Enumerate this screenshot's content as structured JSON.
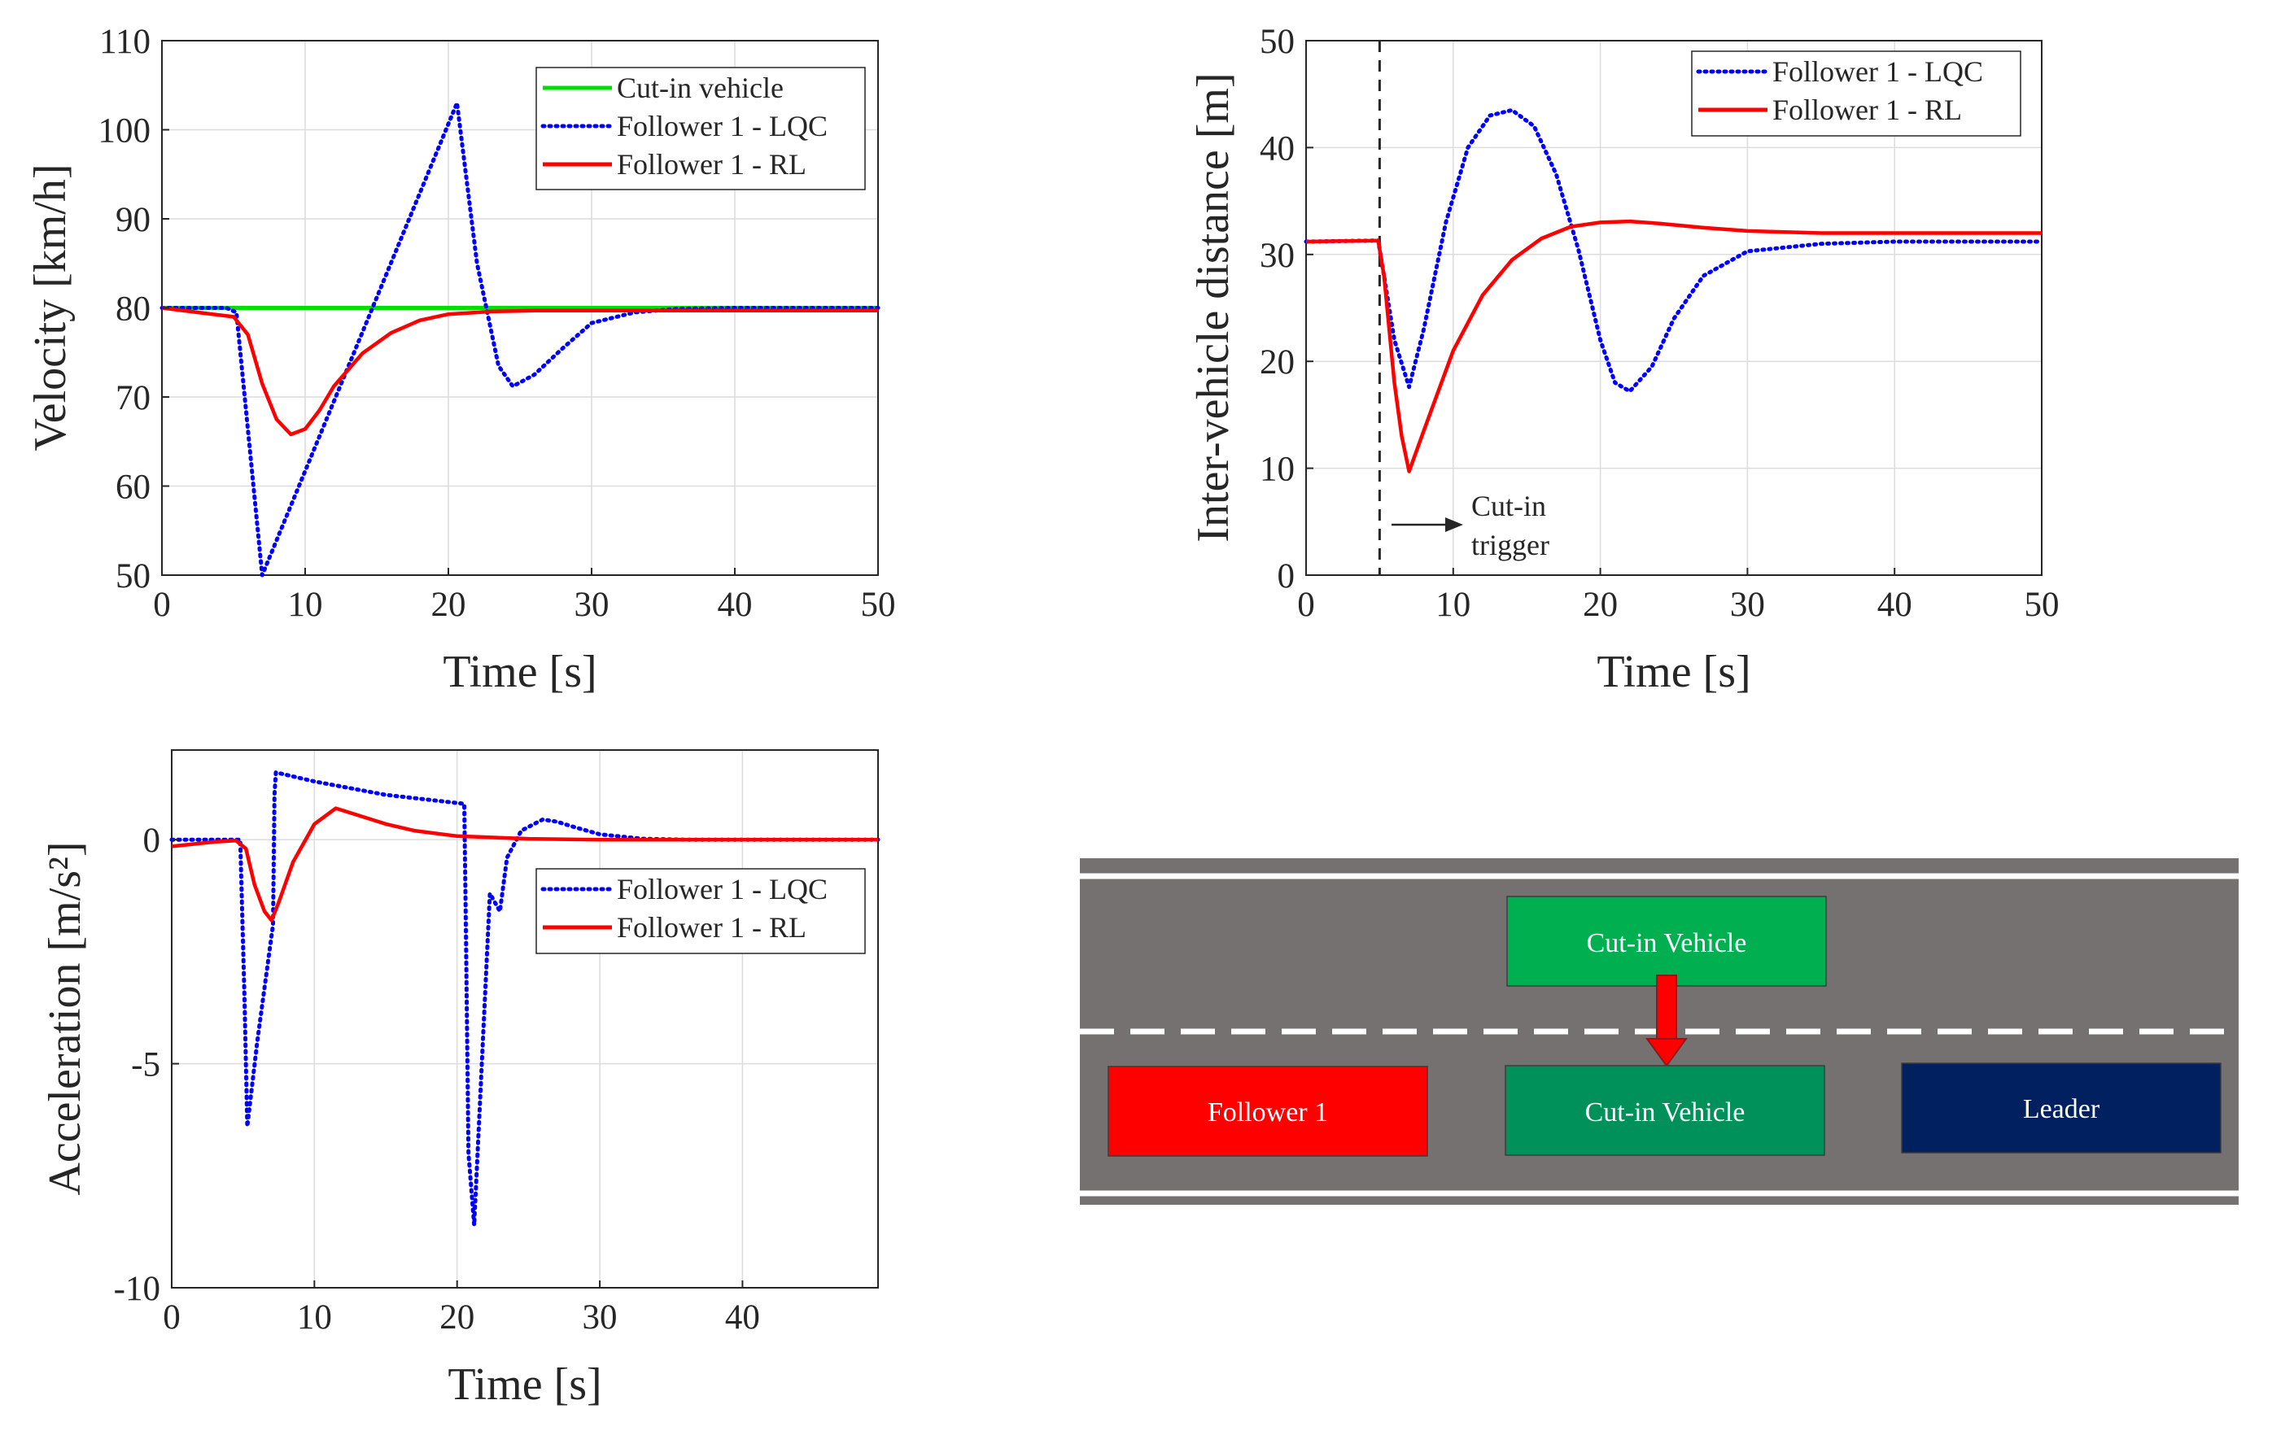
{
  "chart_data": [
    {
      "type": "line",
      "xlabel": "Time [s]",
      "ylabel": "Velocity [km/h]",
      "xlim": [
        0,
        50
      ],
      "ylim": [
        50,
        110
      ],
      "xticks": [
        "0",
        "10",
        "20",
        "30",
        "40",
        "50"
      ],
      "yticks": [
        "50",
        "60",
        "70",
        "80",
        "90",
        "100",
        "110"
      ],
      "grid": true,
      "legend_position": "top-right",
      "series": [
        {
          "name": "Cut-in vehicle",
          "color": "#00e000",
          "style": "solid",
          "x": [
            0,
            50
          ],
          "y": [
            80,
            80
          ]
        },
        {
          "name": "Follower 1 - LQC",
          "color": "#0000ff",
          "style": "dotted",
          "x": [
            0,
            4.5,
            5.2,
            7,
            20.6,
            22,
            23.5,
            24.5,
            26,
            28,
            30,
            33,
            36,
            40,
            50
          ],
          "y": [
            80,
            80,
            79.5,
            50,
            103,
            85,
            73.5,
            71.2,
            72.5,
            75.5,
            78.3,
            79.5,
            79.9,
            80,
            80
          ]
        },
        {
          "name": "Follower 1 - RL",
          "color": "#ff0000",
          "style": "solid",
          "x": [
            0,
            3,
            5,
            6,
            7,
            8,
            9,
            10,
            11,
            12,
            14,
            16,
            18,
            20,
            23,
            26,
            30,
            50
          ],
          "y": [
            80,
            79.4,
            79,
            77,
            71.5,
            67.5,
            65.8,
            66.4,
            68.5,
            71.2,
            74.9,
            77.2,
            78.6,
            79.3,
            79.6,
            79.7,
            79.7,
            79.7
          ]
        }
      ]
    },
    {
      "type": "line",
      "xlabel": "Time [s]",
      "ylabel": "Inter-vehicle distance [m]",
      "xlim": [
        0,
        50
      ],
      "ylim": [
        0,
        50
      ],
      "xticks": [
        "0",
        "10",
        "20",
        "30",
        "40",
        "50"
      ],
      "yticks": [
        "0",
        "10",
        "20",
        "30",
        "40",
        "50"
      ],
      "grid": true,
      "legend_position": "top-right",
      "annotation": {
        "text_line1": "Cut-in",
        "text_line2": "trigger",
        "x": 5
      },
      "series": [
        {
          "name": "Follower 1 - LQC",
          "color": "#0000ff",
          "style": "dotted",
          "x": [
            0,
            4.9,
            5.3,
            6,
            7,
            8,
            9.5,
            11,
            12.5,
            14,
            15.5,
            17,
            18.5,
            20,
            21,
            22,
            23.5,
            25,
            27,
            30,
            35,
            40,
            50
          ],
          "y": [
            31.2,
            31.3,
            28,
            22,
            17.6,
            23,
            33,
            40,
            43,
            43.5,
            42,
            37.5,
            30.5,
            22,
            18,
            17.2,
            19.5,
            24,
            28,
            30.3,
            31,
            31.2,
            31.2
          ]
        },
        {
          "name": "Follower 1 - RL",
          "color": "#ff0000",
          "style": "solid",
          "x": [
            0,
            4.9,
            5.3,
            6,
            6.5,
            7,
            8,
            10,
            12,
            14,
            16,
            18,
            20,
            22,
            24,
            27,
            30,
            35,
            40,
            50
          ],
          "y": [
            31.2,
            31.3,
            28,
            18,
            13,
            9.7,
            13.5,
            21,
            26.2,
            29.5,
            31.5,
            32.6,
            33,
            33.1,
            32.9,
            32.5,
            32.2,
            32,
            32,
            32
          ]
        }
      ]
    },
    {
      "type": "line",
      "xlabel": "Time [s]",
      "ylabel": "Acceleration [m/s²]",
      "xlim": [
        0,
        49.5
      ],
      "ylim": [
        -10,
        2
      ],
      "xticks": [
        "0",
        "10",
        "20",
        "30",
        "40"
      ],
      "yticks": [
        "-10",
        "-5",
        "0"
      ],
      "grid": true,
      "legend_position": "top-right",
      "series": [
        {
          "name": "Follower 1 - LQC",
          "color": "#0000ff",
          "style": "dotted",
          "x": [
            0,
            4.8,
            5.1,
            5.3,
            6,
            7.1,
            7.2,
            7.3,
            10,
            15,
            20.5,
            20.6,
            20.8,
            21.2,
            22.3,
            23,
            23.5,
            24.5,
            26,
            27,
            28,
            30,
            33,
            36,
            40,
            49.5
          ],
          "y": [
            0,
            0,
            -3.5,
            -6.4,
            -4.5,
            -1.9,
            1.0,
            1.5,
            1.3,
            1.0,
            0.8,
            -1.5,
            -7.0,
            -8.6,
            -1.2,
            -1.6,
            -0.4,
            0.2,
            0.45,
            0.4,
            0.3,
            0.12,
            0.02,
            0,
            0,
            0
          ]
        },
        {
          "name": "Follower 1 - RL",
          "color": "#ff0000",
          "style": "solid",
          "x": [
            0,
            3,
            4.5,
            5.2,
            5.8,
            6.5,
            7,
            7.5,
            8.5,
            10,
            11.5,
            13,
            15,
            17,
            20,
            25,
            30,
            49.5
          ],
          "y": [
            -0.15,
            -0.05,
            -0.02,
            -0.2,
            -1.0,
            -1.6,
            -1.8,
            -1.4,
            -0.5,
            0.35,
            0.7,
            0.55,
            0.35,
            0.2,
            0.08,
            0.02,
            0,
            0
          ]
        }
      ]
    }
  ],
  "diagram": {
    "cut_in_upper_label": "Cut-in Vehicle",
    "follower_label": "Follower 1",
    "cut_in_lower_label": "Cut-in Vehicle",
    "leader_label": "Leader",
    "road_color": "#767171",
    "follower_color": "#ff0000",
    "cut_in_upper_color": "#00b050",
    "cut_in_lower_color": "#00915a",
    "leader_color": "#002060",
    "arrow_color": "#ff0000"
  }
}
